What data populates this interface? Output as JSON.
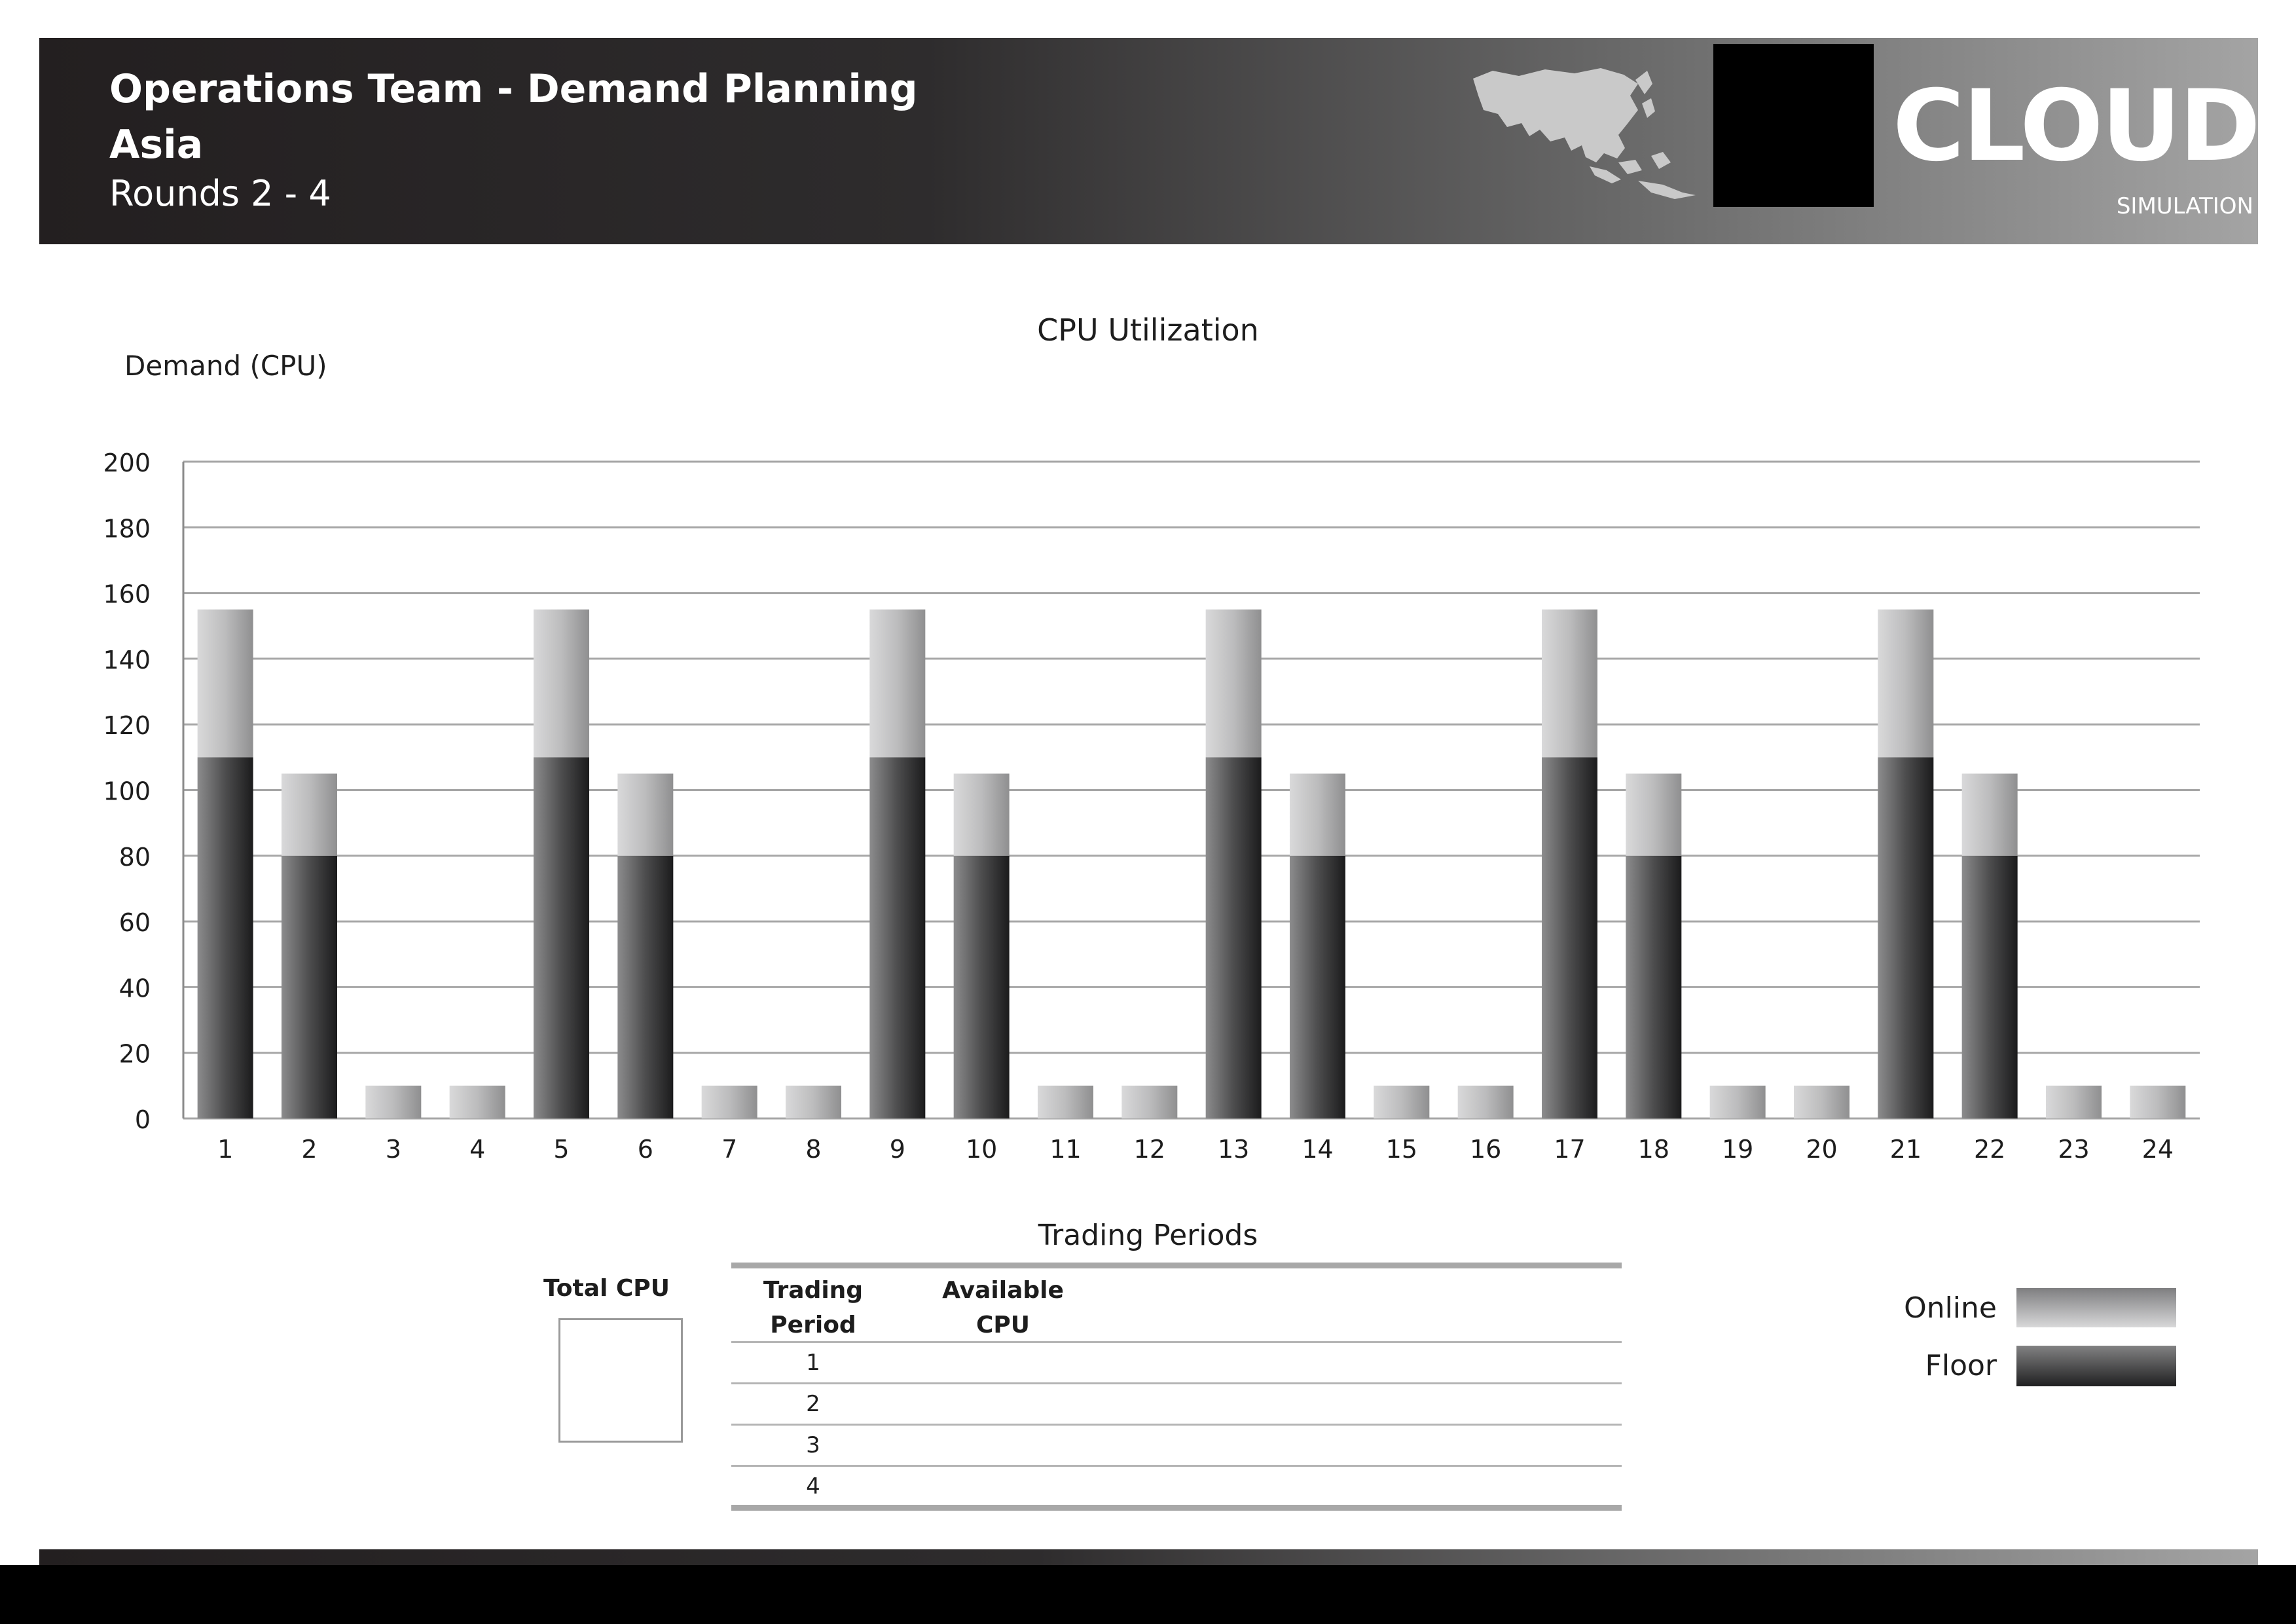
{
  "header": {
    "title": "Operations Team - Demand Planning",
    "region": "Asia",
    "rounds": "Rounds 2 - 4",
    "logo_word": "CLOUD",
    "logo_sub": "SIMULATION",
    "map_icon": "asia-map-icon"
  },
  "chart_data": {
    "type": "bar",
    "stacked": true,
    "title": "CPU Utilization",
    "ylabel": "Demand (CPU)",
    "xlabel": "Trading Periods",
    "ylim": [
      0,
      200
    ],
    "yticks": [
      0,
      20,
      40,
      60,
      80,
      100,
      120,
      140,
      160,
      180,
      200
    ],
    "grid": true,
    "categories": [
      "1",
      "2",
      "3",
      "4",
      "5",
      "6",
      "7",
      "8",
      "9",
      "10",
      "11",
      "12",
      "13",
      "14",
      "15",
      "16",
      "17",
      "18",
      "19",
      "20",
      "21",
      "22",
      "23",
      "24"
    ],
    "series": [
      {
        "name": "Floor",
        "values": [
          110,
          80,
          0,
          0,
          110,
          80,
          0,
          0,
          110,
          80,
          0,
          0,
          110,
          80,
          0,
          0,
          110,
          80,
          0,
          0,
          110,
          80,
          0,
          0
        ]
      },
      {
        "name": "Online",
        "values": [
          45,
          25,
          10,
          10,
          45,
          25,
          10,
          10,
          45,
          25,
          10,
          10,
          45,
          25,
          10,
          10,
          45,
          25,
          10,
          10,
          45,
          25,
          10,
          10
        ]
      }
    ]
  },
  "legend": {
    "online_label": "Online",
    "floor_label": "Floor"
  },
  "total_cpu": {
    "label": "Total CPU",
    "value": ""
  },
  "table": {
    "col_period_line1": "Trading",
    "col_period_line2": "Period",
    "col_cpu_line1": "Available",
    "col_cpu_line2": "CPU",
    "rows": [
      {
        "period": "1",
        "cpu": ""
      },
      {
        "period": "2",
        "cpu": ""
      },
      {
        "period": "3",
        "cpu": ""
      },
      {
        "period": "4",
        "cpu": ""
      }
    ]
  },
  "colors": {
    "grid": "#a6a6a6",
    "axis": "#8a8a8a"
  }
}
